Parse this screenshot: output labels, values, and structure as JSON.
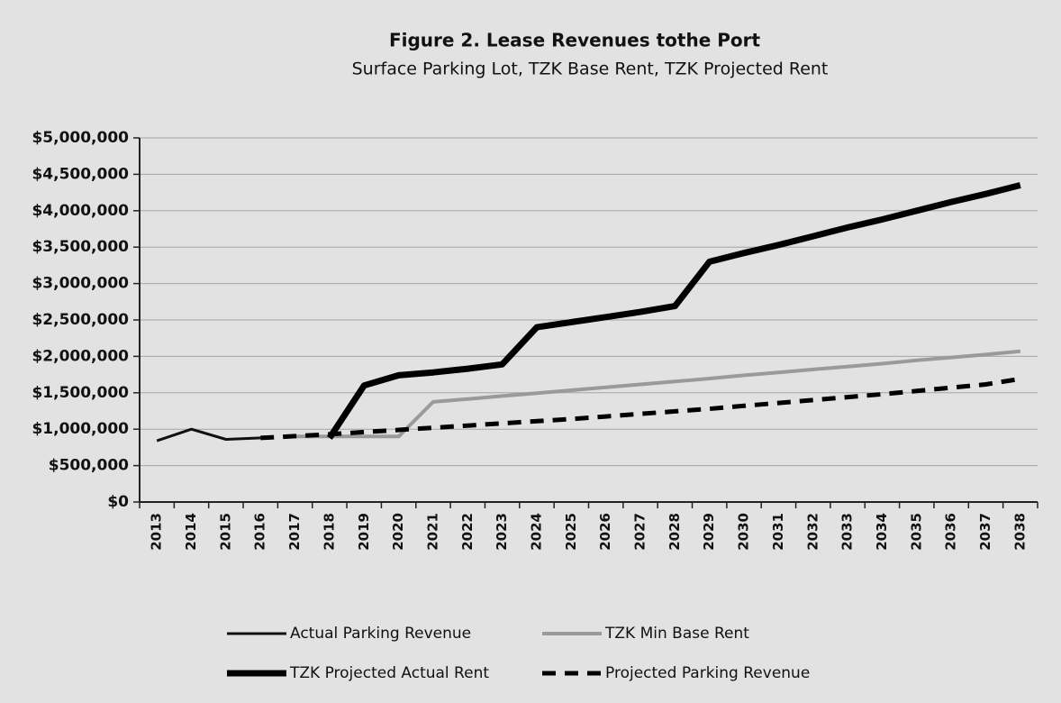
{
  "chart_data": {
    "type": "line",
    "title": "Figure 2. Lease Revenues tothe Port",
    "subtitle": "Surface Parking Lot, TZK Base Rent, TZK Projected Rent",
    "categories": [
      "2013",
      "2014",
      "2015",
      "2016",
      "2017",
      "2018",
      "2019",
      "2020",
      "2021",
      "2022",
      "2023",
      "2024",
      "2025",
      "2026",
      "2027",
      "2028",
      "2029",
      "2030",
      "2031",
      "2032",
      "2033",
      "2034",
      "2035",
      "2036",
      "2037",
      "2038"
    ],
    "ylim": [
      0,
      5000000
    ],
    "yticks": [
      {
        "value": 0,
        "label": "$0"
      },
      {
        "value": 500000,
        "label": "$500,000"
      },
      {
        "value": 1000000,
        "label": "$1,000,000"
      },
      {
        "value": 1500000,
        "label": "$1,500,000"
      },
      {
        "value": 2000000,
        "label": "$2,000,000"
      },
      {
        "value": 2500000,
        "label": "$2,500,000"
      },
      {
        "value": 3000000,
        "label": "$3,000,000"
      },
      {
        "value": 3500000,
        "label": "$3,500,000"
      },
      {
        "value": 4000000,
        "label": "$4,000,000"
      },
      {
        "value": 4500000,
        "label": "$4,500,000"
      },
      {
        "value": 5000000,
        "label": "$5,000,000"
      }
    ],
    "grid": true,
    "legend": "bottom",
    "series": [
      {
        "name": "Actual Parking Revenue",
        "color": "#111111",
        "line_width": 3,
        "dash": false,
        "values": [
          840000,
          1000000,
          860000,
          880000,
          null,
          null,
          null,
          null,
          null,
          null,
          null,
          null,
          null,
          null,
          null,
          null,
          null,
          null,
          null,
          null,
          null,
          null,
          null,
          null,
          null,
          null
        ]
      },
      {
        "name": "TZK Min Base Rent",
        "color": "#9a9a9a",
        "line_width": 4,
        "dash": false,
        "values": [
          null,
          null,
          null,
          null,
          900000,
          900000,
          900000,
          900000,
          1375000,
          1415000,
          1455000,
          1495000,
          1535000,
          1575000,
          1615000,
          1655000,
          1695000,
          1740000,
          1780000,
          1820000,
          1860000,
          1900000,
          1945000,
          1985000,
          2025000,
          2070000
        ]
      },
      {
        "name": "TZK Projected Actual Rent",
        "color": "#000000",
        "line_width": 7,
        "dash": false,
        "values": [
          null,
          null,
          null,
          null,
          null,
          880000,
          1600000,
          1740000,
          1780000,
          1830000,
          1890000,
          2400000,
          2470000,
          2540000,
          2610000,
          2690000,
          3300000,
          3420000,
          3530000,
          3650000,
          3770000,
          3880000,
          4000000,
          4120000,
          4230000,
          4350000
        ]
      },
      {
        "name": "Projected Parking Revenue",
        "color": "#000000",
        "line_width": 5,
        "dash": true,
        "values": [
          null,
          null,
          null,
          880000,
          905000,
          930000,
          960000,
          990000,
          1020000,
          1050000,
          1080000,
          1110000,
          1140000,
          1175000,
          1210000,
          1245000,
          1280000,
          1320000,
          1360000,
          1400000,
          1440000,
          1480000,
          1525000,
          1570000,
          1615000,
          1690000
        ]
      }
    ]
  }
}
